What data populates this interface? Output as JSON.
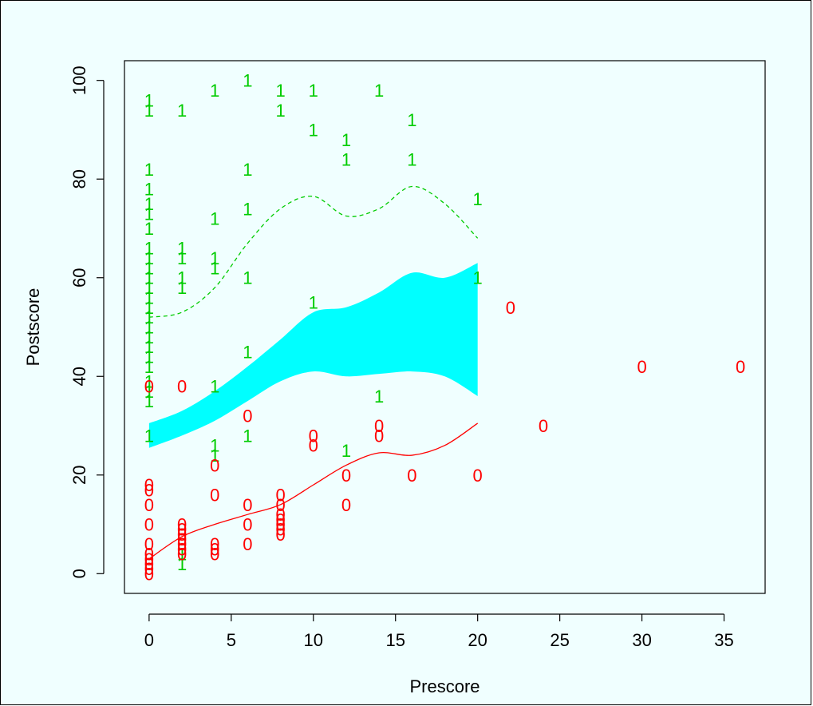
{
  "chart_data": {
    "type": "scatter",
    "xlabel": "Prescore",
    "ylabel": "Postscore",
    "xlim": [
      -1.5,
      37.5
    ],
    "ylim": [
      -4,
      104
    ],
    "x_ticks": [
      "0",
      "5",
      "10",
      "15",
      "20",
      "25",
      "30",
      "35"
    ],
    "y_ticks": [
      "0",
      "20",
      "40",
      "60",
      "80",
      "100"
    ],
    "grid": false,
    "colors": {
      "background": "#f0ffff",
      "group1": "#00cc00",
      "group0": "#ff0000",
      "band": "#00ffff"
    },
    "series": [
      {
        "name": "1",
        "color": "#00cc00",
        "marker": "1",
        "points": [
          [
            0,
            96
          ],
          [
            0,
            94
          ],
          [
            0,
            82
          ],
          [
            0,
            78
          ],
          [
            0,
            75
          ],
          [
            0,
            73
          ],
          [
            0,
            70
          ],
          [
            0,
            66
          ],
          [
            0,
            64
          ],
          [
            0,
            62
          ],
          [
            0,
            60
          ],
          [
            0,
            58
          ],
          [
            0,
            56
          ],
          [
            0,
            54
          ],
          [
            0,
            52
          ],
          [
            0,
            50
          ],
          [
            0,
            48
          ],
          [
            0,
            46
          ],
          [
            0,
            44
          ],
          [
            0,
            42
          ],
          [
            0,
            39
          ],
          [
            0,
            37
          ],
          [
            0,
            35
          ],
          [
            0,
            28
          ],
          [
            2,
            94
          ],
          [
            2,
            66
          ],
          [
            2,
            64
          ],
          [
            2,
            60
          ],
          [
            2,
            58
          ],
          [
            2,
            4
          ],
          [
            2,
            2
          ],
          [
            4,
            98
          ],
          [
            4,
            72
          ],
          [
            4,
            64
          ],
          [
            4,
            62
          ],
          [
            4,
            38
          ],
          [
            4,
            26
          ],
          [
            4,
            24
          ],
          [
            6,
            100
          ],
          [
            6,
            82
          ],
          [
            6,
            74
          ],
          [
            6,
            60
          ],
          [
            6,
            45
          ],
          [
            6,
            28
          ],
          [
            8,
            98
          ],
          [
            8,
            94
          ],
          [
            10,
            98
          ],
          [
            10,
            90
          ],
          [
            10,
            55
          ],
          [
            12,
            88
          ],
          [
            12,
            84
          ],
          [
            12,
            25
          ],
          [
            14,
            98
          ],
          [
            14,
            36
          ],
          [
            16,
            92
          ],
          [
            16,
            84
          ],
          [
            20,
            76
          ],
          [
            20,
            60
          ]
        ]
      },
      {
        "name": "0",
        "color": "#ff0000",
        "marker": "0",
        "points": [
          [
            0,
            38
          ],
          [
            0,
            18
          ],
          [
            0,
            17
          ],
          [
            0,
            14
          ],
          [
            0,
            10
          ],
          [
            0,
            6
          ],
          [
            0,
            4
          ],
          [
            0,
            3
          ],
          [
            0,
            2
          ],
          [
            0,
            1
          ],
          [
            0,
            0
          ],
          [
            2,
            38
          ],
          [
            2,
            10
          ],
          [
            2,
            9
          ],
          [
            2,
            8
          ],
          [
            2,
            7
          ],
          [
            2,
            6
          ],
          [
            2,
            5
          ],
          [
            2,
            4
          ],
          [
            4,
            22
          ],
          [
            4,
            16
          ],
          [
            4,
            6
          ],
          [
            4,
            5
          ],
          [
            4,
            4
          ],
          [
            6,
            32
          ],
          [
            6,
            14
          ],
          [
            6,
            10
          ],
          [
            6,
            6
          ],
          [
            8,
            16
          ],
          [
            8,
            14
          ],
          [
            8,
            12
          ],
          [
            8,
            11
          ],
          [
            8,
            10
          ],
          [
            8,
            9
          ],
          [
            8,
            8
          ],
          [
            10,
            28
          ],
          [
            10,
            26
          ],
          [
            12,
            20
          ],
          [
            12,
            14
          ],
          [
            14,
            30
          ],
          [
            14,
            28
          ],
          [
            16,
            20
          ],
          [
            20,
            20
          ],
          [
            22,
            54
          ],
          [
            24,
            30
          ],
          [
            30,
            42
          ],
          [
            36,
            42
          ]
        ]
      }
    ],
    "smooth_1": {
      "color": "#00cc00",
      "style": "dashed",
      "points": [
        [
          0,
          52
        ],
        [
          2,
          53
        ],
        [
          4,
          58
        ],
        [
          6,
          67
        ],
        [
          8,
          74
        ],
        [
          10,
          76.5
        ],
        [
          12,
          72.5
        ],
        [
          14,
          74
        ],
        [
          16,
          78.5
        ],
        [
          18,
          75
        ],
        [
          20,
          68
        ]
      ]
    },
    "smooth_0": {
      "color": "#ff0000",
      "style": "solid",
      "points": [
        [
          0,
          3
        ],
        [
          2,
          7.5
        ],
        [
          4,
          10
        ],
        [
          6,
          12
        ],
        [
          8,
          14
        ],
        [
          10,
          18
        ],
        [
          12,
          22
        ],
        [
          14,
          24.5
        ],
        [
          16,
          24
        ],
        [
          18,
          26
        ],
        [
          20,
          30.5
        ]
      ]
    },
    "band": {
      "color": "#00ffff",
      "upper": [
        [
          0,
          30.5
        ],
        [
          2,
          33
        ],
        [
          4,
          37
        ],
        [
          6,
          42
        ],
        [
          8,
          47.5
        ],
        [
          10,
          53
        ],
        [
          12,
          54
        ],
        [
          14,
          57
        ],
        [
          16,
          61
        ],
        [
          18,
          60
        ],
        [
          20,
          63
        ]
      ],
      "lower": [
        [
          0,
          25.5
        ],
        [
          2,
          28
        ],
        [
          4,
          31
        ],
        [
          6,
          35
        ],
        [
          8,
          39
        ],
        [
          10,
          41
        ],
        [
          12,
          40
        ],
        [
          14,
          40.5
        ],
        [
          16,
          41
        ],
        [
          18,
          40
        ],
        [
          20,
          36
        ]
      ]
    }
  }
}
